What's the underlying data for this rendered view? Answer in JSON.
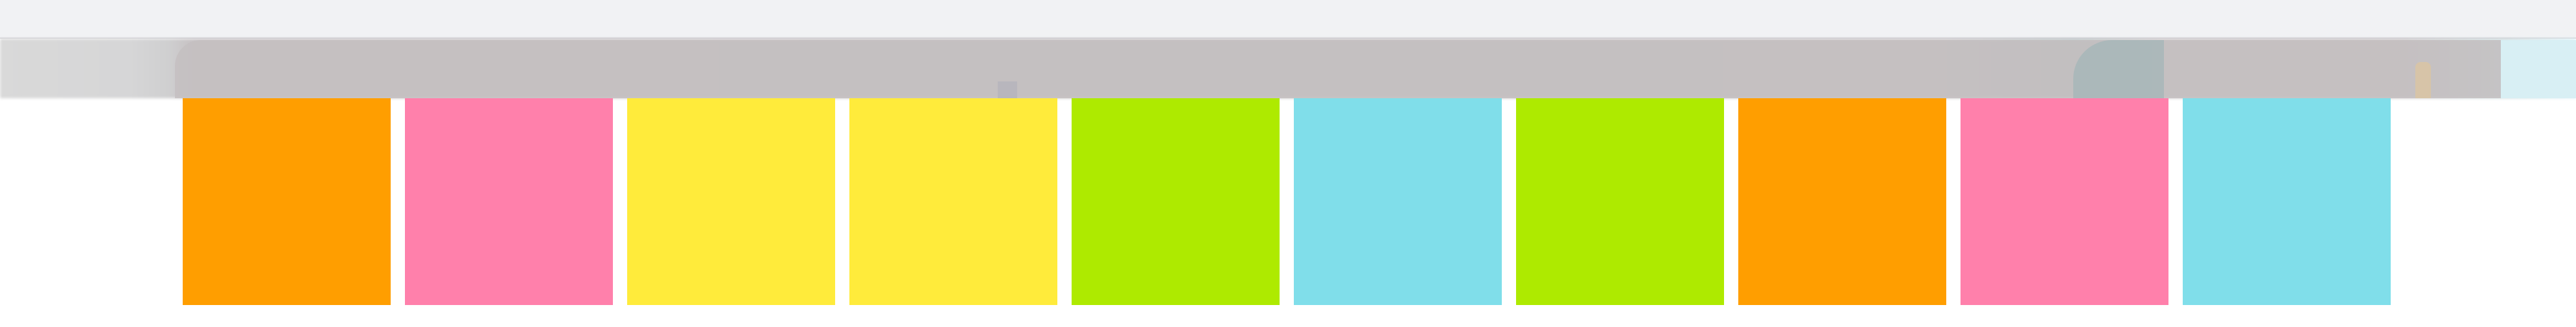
{
  "palette": {
    "top_bar": "#f1f2f4",
    "blur_band": "#c5c0c2"
  },
  "tiles": [
    {
      "name": "orange",
      "color": "#ff9e00"
    },
    {
      "name": "pink",
      "color": "#ff80ab"
    },
    {
      "name": "yellow",
      "color": "#ffeb3b"
    },
    {
      "name": "yellow",
      "color": "#ffeb3b"
    },
    {
      "name": "lime",
      "color": "#aeea00"
    },
    {
      "name": "cyan",
      "color": "#80deea"
    },
    {
      "name": "lime",
      "color": "#aeea00"
    },
    {
      "name": "orange",
      "color": "#ff9e00"
    },
    {
      "name": "pink",
      "color": "#ff80ab"
    },
    {
      "name": "cyan",
      "color": "#80deea"
    }
  ]
}
